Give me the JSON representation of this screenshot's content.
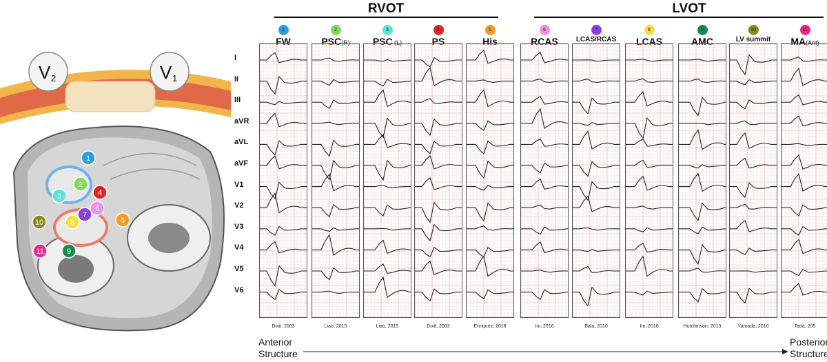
{
  "groups": [
    {
      "label": "RVOT"
    },
    {
      "label": "LVOT"
    }
  ],
  "columns": [
    {
      "num": "1",
      "label": "FW",
      "sub": "",
      "color": "#2a9fe0",
      "cite": "Dixit, 2003"
    },
    {
      "num": "2",
      "label": "PSC",
      "sub": "(R)",
      "color": "#7ed957",
      "cite": "Liao, 2015"
    },
    {
      "num": "3",
      "label": "PSC",
      "sub": " (L)",
      "color": "#5fe0d8",
      "cite": "Liao, 2015"
    },
    {
      "num": "4",
      "label": "PS",
      "sub": "",
      "color": "#e52222",
      "cite": "Dixit, 2003"
    },
    {
      "num": "5",
      "label": "His",
      "sub": "",
      "color": "#f59b22",
      "cite": "Enriquez, 2018"
    },
    {
      "num": "6",
      "label": "RCAS",
      "sub": "",
      "color": "#f08ef0",
      "cite": "Im, 2016"
    },
    {
      "num": "7",
      "label": "LCAS/RCAS",
      "sub": "",
      "color": "#8a3fe0",
      "cite": "Bala, 2010"
    },
    {
      "num": "8",
      "label": "LCAS",
      "sub": "",
      "color": "#f5e03a",
      "cite": "Im, 2016"
    },
    {
      "num": "9",
      "label": "AMC",
      "sub": "",
      "color": "#1c8a4a",
      "cite": "Hutchinson, 2013"
    },
    {
      "num": "10",
      "label": "LV summit",
      "sub": "",
      "color": "#8a8a1a",
      "cite": "Yamada, 2010"
    },
    {
      "num": "11",
      "label": "MA",
      "sub": "(Ant)",
      "color": "#e82a8a",
      "cite": "Tada, 205"
    }
  ],
  "leads": [
    "I",
    "II",
    "III",
    "aVR",
    "aVL",
    "aVF",
    "V1",
    "V2",
    "V3",
    "V4",
    "V5",
    "V6"
  ],
  "left_labels": {
    "v2": "V",
    "v2_sub": "2",
    "v1": "V",
    "v1_sub": "1"
  },
  "anatomy_markers": [
    "1",
    "2",
    "3",
    "4",
    "5",
    "6",
    "7",
    "8",
    "9",
    "10",
    "11"
  ],
  "axis": {
    "start_line1": "Anterior",
    "start_line2": "Structure",
    "end_line1": "Posterior",
    "end_line2": "Structure"
  },
  "colors": {
    "grid_minor": "#f3c9c9",
    "grid_major": "#e59a9a",
    "trace": "#222222"
  }
}
